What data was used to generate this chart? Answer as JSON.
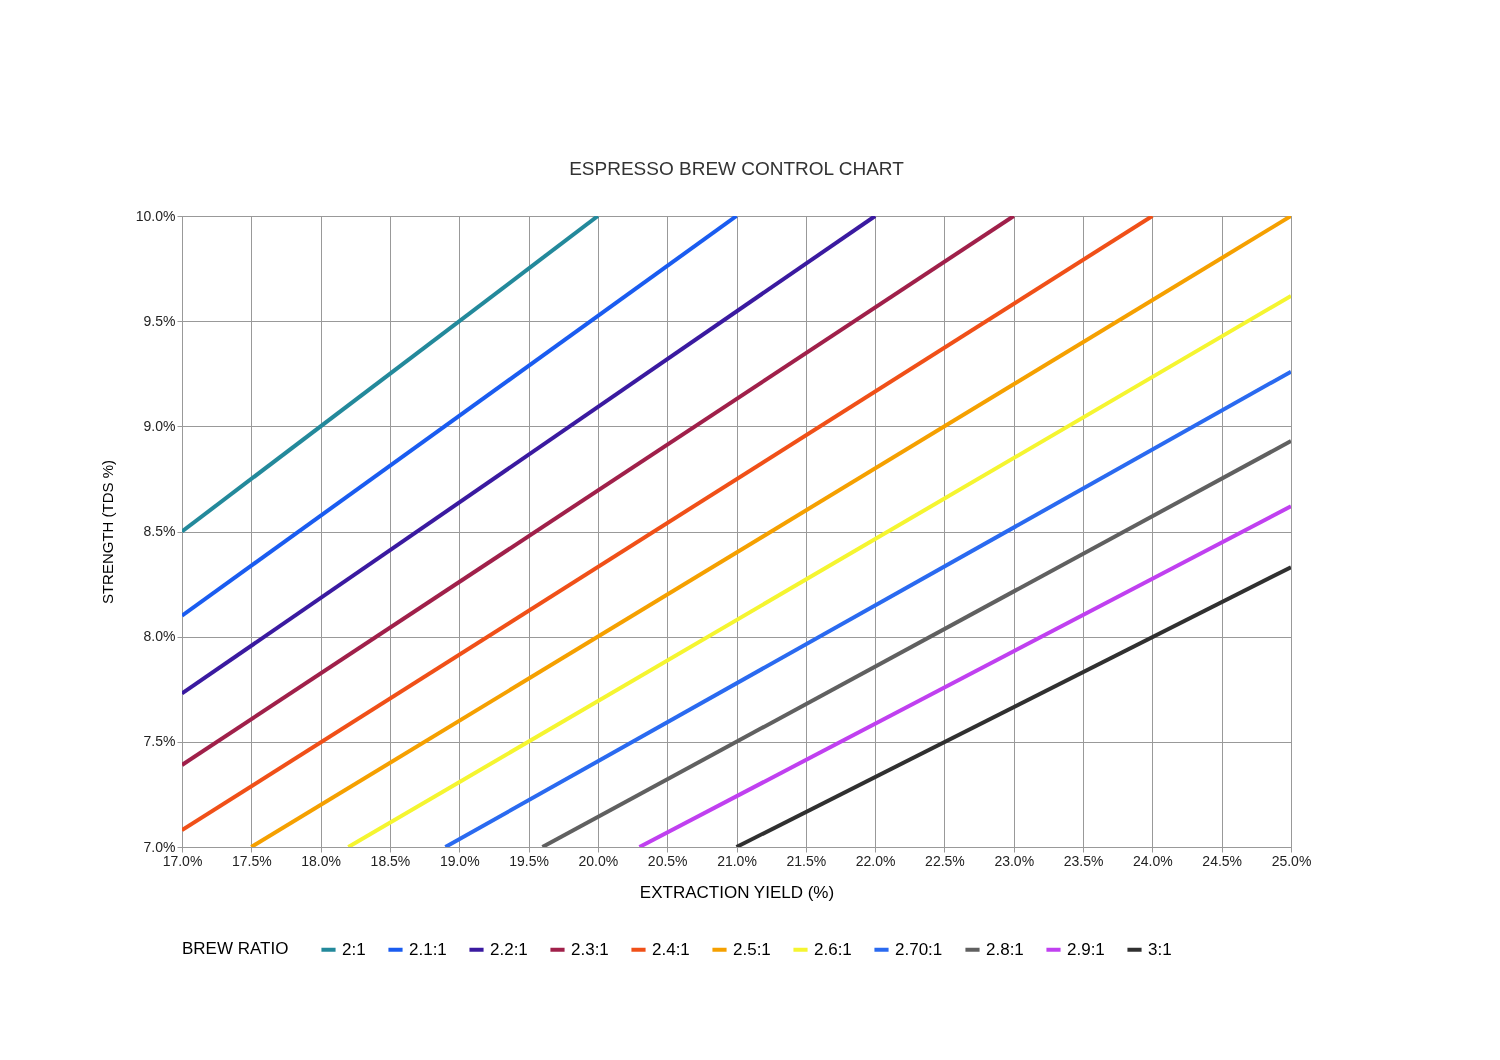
{
  "chart_data": {
    "type": "line",
    "title": "ESPRESSO BREW CONTROL CHART",
    "xlabel": "EXTRACTION YIELD (%)",
    "ylabel": "STRENGTH (TDS %)",
    "legend_title": "BREW RATIO",
    "xlim": [
      17,
      25
    ],
    "ylim": [
      7,
      10
    ],
    "xticks": [
      {
        "value": 17,
        "label": "17.0%"
      },
      {
        "value": 17.5,
        "label": "17.5%"
      },
      {
        "value": 18,
        "label": "18.0%"
      },
      {
        "value": 18.5,
        "label": "18.5%"
      },
      {
        "value": 19,
        "label": "19.0%"
      },
      {
        "value": 19.5,
        "label": "19.5%"
      },
      {
        "value": 20,
        "label": "20.0%"
      },
      {
        "value": 20.5,
        "label": "20.5%"
      },
      {
        "value": 21,
        "label": "21.0%"
      },
      {
        "value": 21.5,
        "label": "21.5%"
      },
      {
        "value": 22,
        "label": "22.0%"
      },
      {
        "value": 22.5,
        "label": "22.5%"
      },
      {
        "value": 23,
        "label": "23.0%"
      },
      {
        "value": 23.5,
        "label": "23.5%"
      },
      {
        "value": 24,
        "label": "24.0%"
      },
      {
        "value": 24.5,
        "label": "24.5%"
      },
      {
        "value": 25,
        "label": "25.0%"
      }
    ],
    "yticks": [
      {
        "value": 7,
        "label": "7.0%"
      },
      {
        "value": 7.5,
        "label": "7.5%"
      },
      {
        "value": 8,
        "label": "8.0%"
      },
      {
        "value": 8.5,
        "label": "8.5%"
      },
      {
        "value": 9,
        "label": "9.0%"
      },
      {
        "value": 9.5,
        "label": "9.5%"
      },
      {
        "value": 10,
        "label": "10.0%"
      }
    ],
    "grid": true,
    "legend": "bottom",
    "line_style": "solid",
    "series": [
      {
        "name": "2:1",
        "color": "#23899b",
        "x": [
          17,
          20
        ],
        "values": [
          8.5,
          10
        ]
      },
      {
        "name": "2.1:1",
        "color": "#1a5cf0",
        "x": [
          17,
          21
        ],
        "values": [
          8.1,
          10
        ]
      },
      {
        "name": "2.2:1",
        "color": "#3a1aa0",
        "x": [
          17,
          22
        ],
        "values": [
          7.73,
          10
        ]
      },
      {
        "name": "2.3:1",
        "color": "#a0204a",
        "x": [
          17,
          23
        ],
        "values": [
          7.39,
          10
        ]
      },
      {
        "name": "2.4:1",
        "color": "#f05018",
        "x": [
          17,
          24
        ],
        "values": [
          7.08,
          10
        ]
      },
      {
        "name": "2.5:1",
        "color": "#f5a000",
        "x": [
          17.5,
          25
        ],
        "values": [
          7,
          10
        ]
      },
      {
        "name": "2.6:1",
        "color": "#f5f530",
        "x": [
          18.2,
          25
        ],
        "values": [
          7,
          9.62
        ]
      },
      {
        "name": "2.70:1",
        "color": "#2a6af0",
        "x": [
          18.9,
          25
        ],
        "values": [
          7,
          9.26
        ]
      },
      {
        "name": "2.8:1",
        "color": "#606060",
        "x": [
          19.6,
          25
        ],
        "values": [
          7,
          8.93
        ]
      },
      {
        "name": "2.9:1",
        "color": "#c040f0",
        "x": [
          20.3,
          25
        ],
        "values": [
          7,
          8.62
        ]
      },
      {
        "name": "3:1",
        "color": "#303030",
        "x": [
          21,
          25
        ],
        "values": [
          7,
          8.33
        ]
      }
    ]
  }
}
